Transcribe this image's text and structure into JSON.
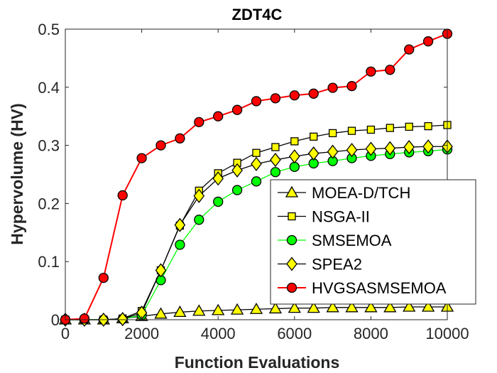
{
  "chart_data": {
    "type": "line",
    "title": "ZDT4C",
    "xlabel": "Function Evaluations",
    "ylabel": "Hypervolume (HV)",
    "xlim": [
      0,
      10000
    ],
    "ylim": [
      0,
      0.5
    ],
    "xticks": [
      0,
      2000,
      4000,
      6000,
      8000,
      10000
    ],
    "xtick_labels": [
      "0",
      "2000",
      "4000",
      "6000",
      "8000",
      "10000"
    ],
    "yticks": [
      0,
      0.1,
      0.2,
      0.3,
      0.4,
      0.5
    ],
    "ytick_labels": [
      "0",
      "0.1",
      "0.2",
      "0.3",
      "0.4",
      "0.5"
    ],
    "grid": false,
    "legend_position": "bottom-right",
    "x": [
      0,
      500,
      1000,
      1500,
      2000,
      2500,
      3000,
      3500,
      4000,
      4500,
      5000,
      5500,
      6000,
      6500,
      7000,
      7500,
      8000,
      8500,
      9000,
      9500,
      10000
    ],
    "series": [
      {
        "name": "MOEA-D/TCH",
        "marker": "triangle",
        "line_color": "#000000",
        "marker_fill": "#ffff00",
        "values": [
          0,
          0,
          0,
          0.002,
          0.006,
          0.01,
          0.013,
          0.015,
          0.016,
          0.017,
          0.018,
          0.019,
          0.02,
          0.02,
          0.021,
          0.021,
          0.021,
          0.021,
          0.022,
          0.022,
          0.022
        ]
      },
      {
        "name": "NSGA-II",
        "marker": "square",
        "line_color": "#000000",
        "marker_fill": "#ffff00",
        "values": [
          0,
          0,
          0,
          0.002,
          0.015,
          0.085,
          0.162,
          0.222,
          0.252,
          0.27,
          0.287,
          0.297,
          0.307,
          0.315,
          0.321,
          0.325,
          0.327,
          0.33,
          0.332,
          0.333,
          0.335
        ]
      },
      {
        "name": "SMSEMOA",
        "marker": "circle",
        "line_color": "#00ff00",
        "marker_fill": "#00ff00",
        "values": [
          0,
          0,
          0,
          0.001,
          0.008,
          0.068,
          0.129,
          0.172,
          0.203,
          0.223,
          0.238,
          0.254,
          0.263,
          0.269,
          0.273,
          0.278,
          0.282,
          0.285,
          0.288,
          0.29,
          0.293
        ]
      },
      {
        "name": "SPEA2",
        "marker": "diamond",
        "line_color": "#000000",
        "marker_fill": "#ffff00",
        "values": [
          0,
          0,
          0,
          0.001,
          0.012,
          0.085,
          0.163,
          0.213,
          0.243,
          0.257,
          0.268,
          0.275,
          0.281,
          0.286,
          0.289,
          0.292,
          0.294,
          0.295,
          0.297,
          0.298,
          0.298
        ]
      },
      {
        "name": "HVGSASMSEMOA",
        "marker": "circle",
        "line_color": "#ff0000",
        "marker_fill": "#ff0000",
        "values": [
          0,
          0.002,
          0.072,
          0.214,
          0.278,
          0.3,
          0.312,
          0.34,
          0.35,
          0.361,
          0.376,
          0.381,
          0.386,
          0.389,
          0.399,
          0.402,
          0.427,
          0.43,
          0.465,
          0.479,
          0.492
        ]
      }
    ]
  }
}
